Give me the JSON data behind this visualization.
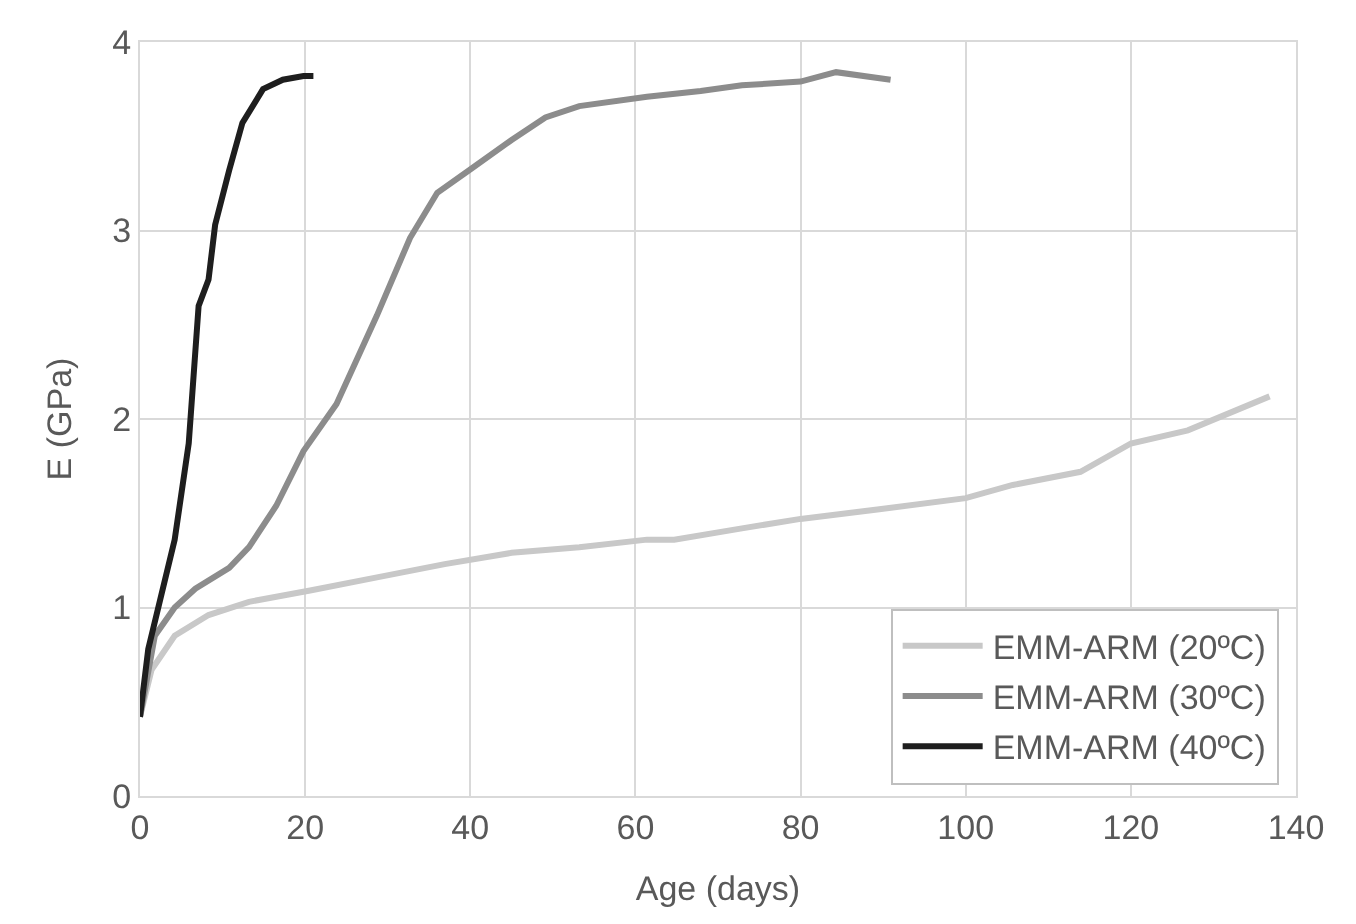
{
  "chart_data": {
    "type": "line",
    "xlabel": "Age (days)",
    "ylabel": "E (GPa)",
    "xlim": [
      0,
      140
    ],
    "xticks": [
      0,
      20,
      40,
      60,
      80,
      100,
      120,
      140
    ],
    "ylim": [
      0,
      4
    ],
    "yticks": [
      0,
      1,
      2,
      3,
      4
    ],
    "grid": true,
    "legend": "bottom right",
    "marker": "none",
    "line_style": "solid",
    "series": [
      {
        "name": "EMM-ARM (20ºC)",
        "color": "#c8c8c8",
        "x": [
          0,
          1.4,
          4.2,
          8.3,
          13.2,
          20.6,
          28.7,
          36.9,
          45,
          53.2,
          61.4,
          64.7,
          72.9,
          80,
          89.3,
          100,
          105.7,
          113.9,
          120,
          126.9,
          136.8
        ],
        "values": [
          0.42,
          0.67,
          0.85,
          0.96,
          1.03,
          1.09,
          1.16,
          1.23,
          1.29,
          1.32,
          1.36,
          1.36,
          1.42,
          1.47,
          1.52,
          1.58,
          1.65,
          1.72,
          1.87,
          1.94,
          2.12
        ]
      },
      {
        "name": "EMM-ARM (30ºC)",
        "color": "#8c8c8c",
        "x": [
          0,
          1.8,
          4.2,
          6.7,
          10.8,
          13.2,
          16.5,
          19.8,
          23.8,
          28.7,
          32.7,
          36,
          40.2,
          45,
          49.1,
          53.2,
          61.4,
          67.9,
          72.9,
          80,
          84.3,
          90.9
        ],
        "values": [
          0.42,
          0.85,
          1.0,
          1.1,
          1.21,
          1.32,
          1.54,
          1.83,
          2.08,
          2.55,
          2.96,
          3.2,
          3.33,
          3.48,
          3.6,
          3.66,
          3.71,
          3.74,
          3.77,
          3.79,
          3.84,
          3.8
        ]
      },
      {
        "name": "EMM-ARM (40ºC)",
        "color": "#1e1e1e",
        "x": [
          0,
          1,
          4.2,
          5.9,
          7.1,
          8.3,
          9.1,
          10.8,
          12.4,
          14.9,
          17.3,
          19.8,
          21
        ],
        "values": [
          0.42,
          0.78,
          1.36,
          1.87,
          2.6,
          2.74,
          3.03,
          3.32,
          3.57,
          3.75,
          3.8,
          3.82,
          3.82
        ]
      }
    ]
  }
}
